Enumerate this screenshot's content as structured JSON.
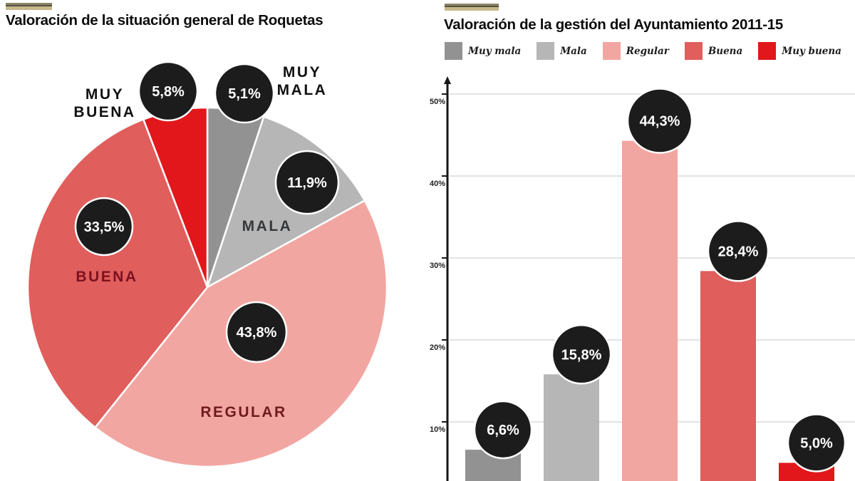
{
  "page": {
    "background": "#ffffff"
  },
  "palette": {
    "muy_mala": "#929292",
    "mala": "#b7b6b6",
    "regular": "#f2a6a1",
    "buena": "#e05e5c",
    "muy_buena": "#e1171b",
    "badge": "#1c1c1c",
    "badge_text": "#ffffff",
    "grid": "#e3e3e3",
    "axis": "#161616",
    "accent_bar": "#c6b88a"
  },
  "chart_data": [
    {
      "type": "pie",
      "title": "Valoración de la situación general de Roquetas",
      "categories": [
        "MUY MALA",
        "MALA",
        "REGULAR",
        "BUENA",
        "MUY BUENA"
      ],
      "values": [
        5.1,
        11.9,
        43.8,
        33.5,
        5.8
      ],
      "value_labels": [
        "5,1%",
        "11,9%",
        "43,8%",
        "33,5%",
        "5,8%"
      ],
      "colors": [
        "#929292",
        "#b7b6b6",
        "#f2a6a1",
        "#e05e5c",
        "#e1171b"
      ],
      "label_colors": [
        "#111111",
        "#35393c",
        "#6e1b1e",
        "#7c1220",
        "#111111"
      ],
      "start_angle_deg": 0,
      "direction": "clockwise"
    },
    {
      "type": "bar",
      "title": "Valoración de la gestión del Ayuntamiento 2011-15",
      "categories": [
        "Muy mala",
        "Mala",
        "Regular",
        "Buena",
        "Muy buena"
      ],
      "values": [
        6.6,
        15.8,
        44.3,
        28.4,
        5.0
      ],
      "value_labels": [
        "6,6%",
        "15,8%",
        "44,3%",
        "28,4%",
        "5,0%"
      ],
      "colors": [
        "#929292",
        "#b7b6b6",
        "#f2a6a1",
        "#e05e5c",
        "#e1171b"
      ],
      "ytick_labels": [
        "10%",
        "20%",
        "30%",
        "40%",
        "50%"
      ],
      "ytick_values": [
        10,
        20,
        30,
        40,
        50
      ],
      "ylim": [
        0,
        50
      ],
      "grid": true,
      "legend_position": "top"
    }
  ]
}
